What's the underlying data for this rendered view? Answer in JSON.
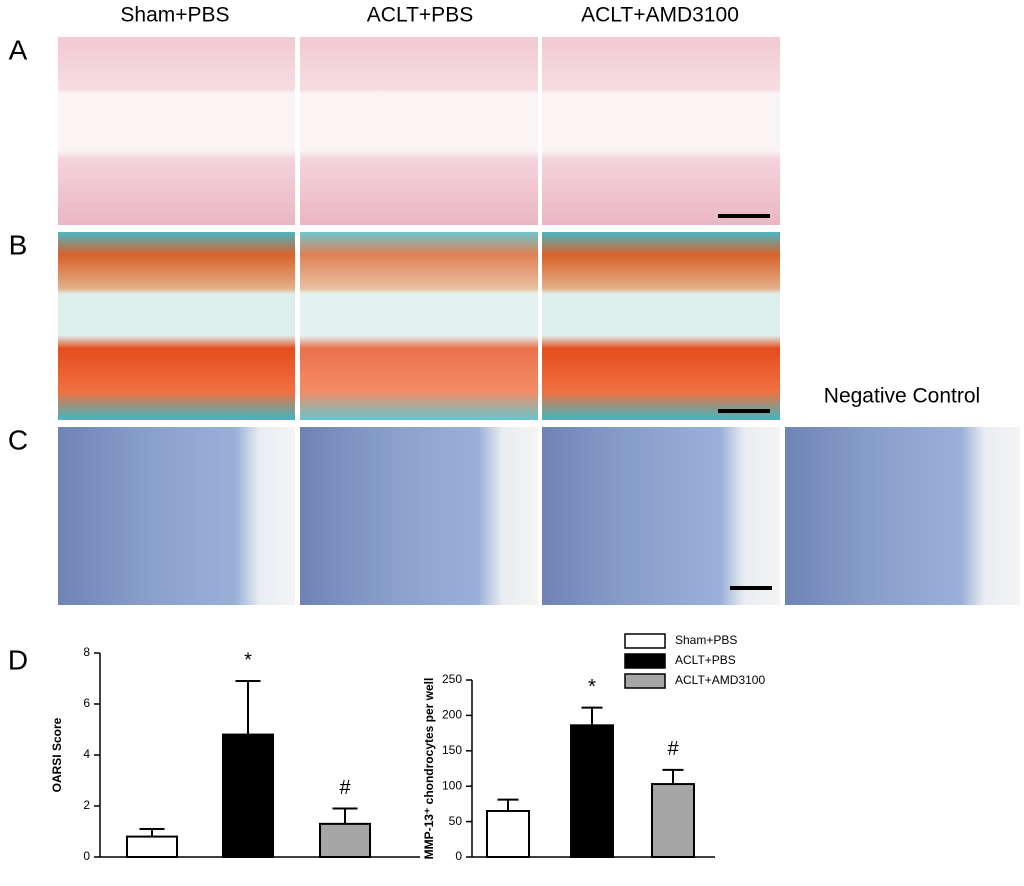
{
  "figure": {
    "columns": [
      "Sham+PBS",
      "ACLT+PBS",
      "ACLT+AMD3100"
    ],
    "panels": [
      "A",
      "B",
      "C",
      "D"
    ],
    "negative_control": "Negative Control"
  },
  "chart_data": [
    {
      "type": "bar",
      "ylabel": "OARSI Score",
      "values": [
        0.8,
        4.8,
        1.3
      ],
      "errors": [
        0.3,
        2.1,
        0.6
      ],
      "colors": [
        "#ffffff",
        "#000000",
        "#a6a6a6"
      ],
      "annotations": [
        null,
        "*",
        "#"
      ],
      "ylim": [
        0,
        8
      ],
      "yticks": [
        0,
        2,
        4,
        6,
        8
      ]
    },
    {
      "type": "bar",
      "ylabel": "MMP-13⁺ chondrocytes per well",
      "series": [
        {
          "name": "Sham+PBS",
          "color": "#ffffff",
          "values": [
            65
          ],
          "errors": [
            16
          ]
        },
        {
          "name": "ACLT+PBS",
          "color": "#000000",
          "values": [
            186
          ],
          "errors": [
            25
          ]
        },
        {
          "name": "ACLT+AMD3100",
          "color": "#a6a6a6",
          "values": [
            103
          ],
          "errors": [
            20
          ]
        }
      ],
      "annotations": [
        null,
        "*",
        "#"
      ],
      "ylim": [
        0,
        250
      ],
      "yticks": [
        0,
        50,
        100,
        150,
        200,
        250
      ]
    }
  ]
}
